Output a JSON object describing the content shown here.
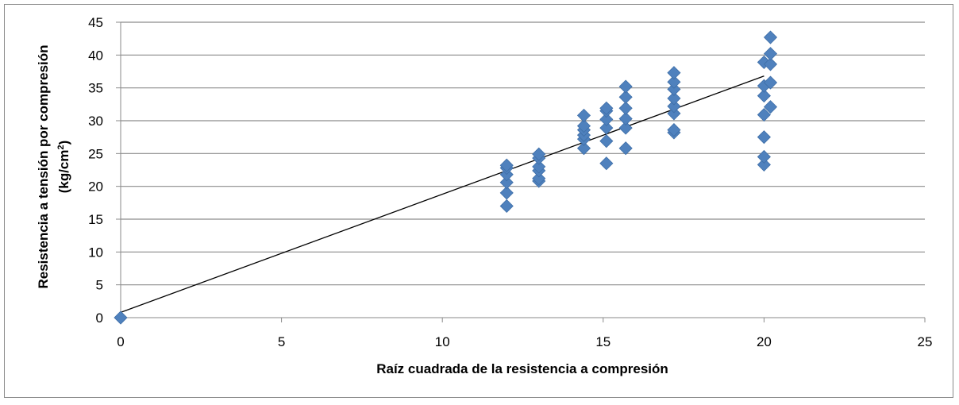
{
  "chart_data": {
    "type": "scatter",
    "title": "",
    "xlabel": "Raíz cuadrada de la resistencia a compresión",
    "ylabel_line1": "Resistencia a tensión por compresión",
    "ylabel_line2": "(kg/cm",
    "ylabel_superscript": "2",
    "ylabel_close": ")",
    "xlim": [
      0,
      25
    ],
    "ylim": [
      0,
      45
    ],
    "xticks": [
      0,
      5,
      10,
      15,
      20,
      25
    ],
    "yticks": [
      0,
      5,
      10,
      15,
      20,
      25,
      30,
      35,
      40,
      45
    ],
    "grid": "horizontal",
    "marker": "diamond",
    "marker_color": "#4F81BD",
    "trendline": {
      "x": [
        0,
        20
      ],
      "y": [
        0.8,
        36.8
      ],
      "color": "#000000"
    },
    "series": [
      {
        "points": [
          [
            0,
            0
          ],
          [
            12,
            17
          ],
          [
            12,
            19
          ],
          [
            12,
            20.6
          ],
          [
            12,
            21.8
          ],
          [
            12,
            22.8
          ],
          [
            12,
            23.2
          ],
          [
            13,
            20.8
          ],
          [
            13,
            21.2
          ],
          [
            13,
            22.4
          ],
          [
            13,
            23
          ],
          [
            13,
            24.3
          ],
          [
            13,
            24.9
          ],
          [
            14.4,
            25.8
          ],
          [
            14.4,
            27.2
          ],
          [
            14.4,
            27.8
          ],
          [
            14.4,
            28.6
          ],
          [
            14.4,
            29.2
          ],
          [
            14.4,
            30.8
          ],
          [
            15.1,
            23.5
          ],
          [
            15.1,
            26.9
          ],
          [
            15.1,
            28.9
          ],
          [
            15.1,
            30.2
          ],
          [
            15.1,
            31.5
          ],
          [
            15.1,
            31.9
          ],
          [
            15.7,
            25.8
          ],
          [
            15.7,
            28.9
          ],
          [
            15.7,
            30.3
          ],
          [
            15.7,
            31.9
          ],
          [
            15.7,
            33.6
          ],
          [
            15.7,
            35.2
          ],
          [
            17.2,
            28.2
          ],
          [
            17.2,
            28.6
          ],
          [
            17.2,
            31.1
          ],
          [
            17.2,
            32.2
          ],
          [
            17.2,
            33.4
          ],
          [
            17.2,
            34.8
          ],
          [
            17.2,
            35.9
          ],
          [
            17.2,
            37.3
          ],
          [
            20,
            23.3
          ],
          [
            20,
            24.5
          ],
          [
            20,
            27.5
          ],
          [
            20,
            30.9
          ],
          [
            20,
            33.8
          ],
          [
            20,
            35.3
          ],
          [
            20,
            38.9
          ],
          [
            20.2,
            32.1
          ],
          [
            20.2,
            35.8
          ],
          [
            20.2,
            38.6
          ],
          [
            20.2,
            40.2
          ],
          [
            20.2,
            42.7
          ]
        ]
      }
    ]
  }
}
